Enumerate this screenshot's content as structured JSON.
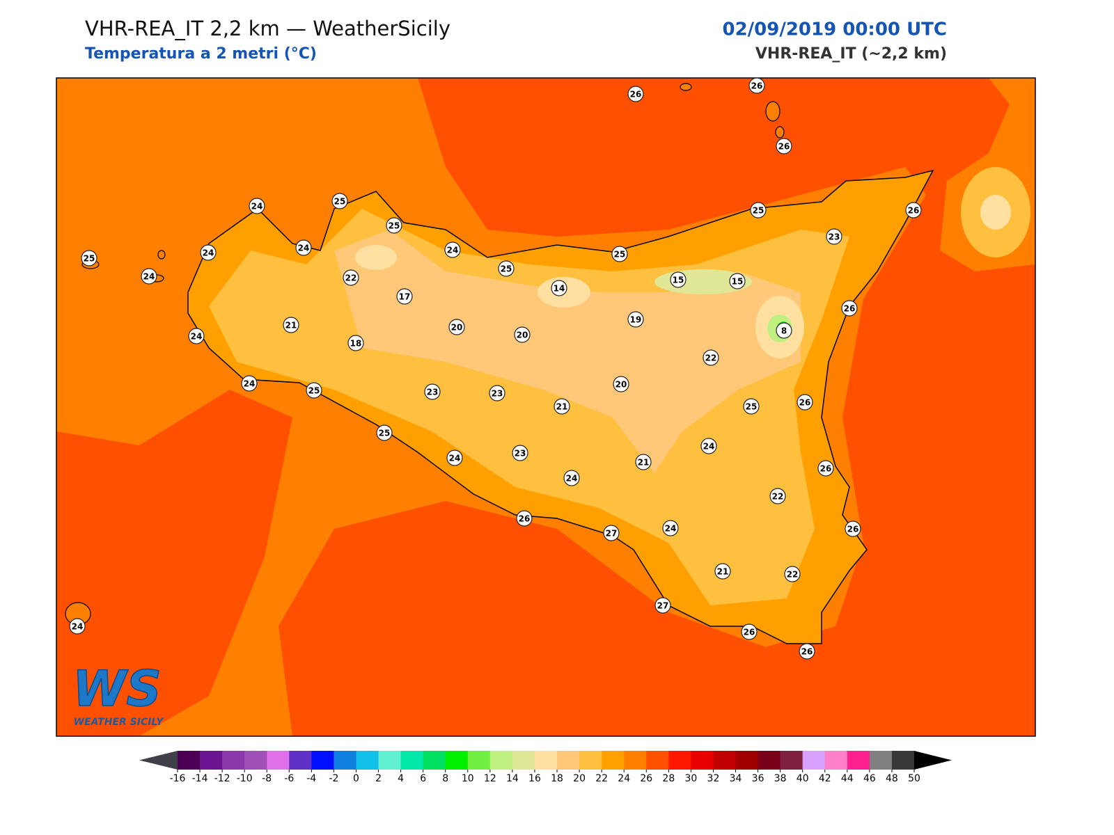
{
  "header": {
    "title": "VHR-REA_IT 2,2 km — WeatherSicily",
    "subtitle": "Temperatura a 2 metri (°C)",
    "datetime": "02/09/2019 00:00 UTC",
    "model": "VHR-REA_IT (~2,2 km)"
  },
  "map": {
    "stations": [
      26,
      26,
      26,
      24,
      25,
      25,
      25,
      24,
      24,
      24,
      24,
      25,
      25,
      25,
      26,
      23,
      22,
      17,
      14,
      15,
      15,
      19,
      8,
      26,
      21,
      24,
      20,
      20,
      18,
      22,
      24,
      25,
      23,
      23,
      21,
      20,
      25,
      26,
      25,
      24,
      23,
      24,
      21,
      24,
      26,
      22,
      26,
      27,
      24,
      26,
      21,
      22,
      27,
      26,
      26,
      24
    ]
  },
  "colorbar": {
    "ticks": [
      -16,
      -14,
      -12,
      -10,
      -8,
      -6,
      -4,
      -2,
      0,
      2,
      4,
      6,
      8,
      10,
      12,
      14,
      16,
      18,
      20,
      22,
      24,
      26,
      28,
      30,
      32,
      34,
      36,
      38,
      40,
      42,
      44,
      46,
      48,
      50
    ],
    "colors": [
      "#4b0055",
      "#6a1494",
      "#8a3aaa",
      "#a050b8",
      "#e070e8",
      "#6030c8",
      "#0010ff",
      "#1080e0",
      "#10c0e8",
      "#60f0d0",
      "#00e8a8",
      "#00e060",
      "#00f000",
      "#70f040",
      "#c0f080",
      "#e0e898",
      "#ffe0a0",
      "#ffc878",
      "#ffc040",
      "#ffa000",
      "#ff8000",
      "#ff5000",
      "#ff1800",
      "#e80000",
      "#c00000",
      "#a00000",
      "#780018",
      "#802040",
      "#d8a0ff",
      "#ff80c8",
      "#ff2090",
      "#808080",
      "#383838"
    ],
    "under_color": "#404048",
    "over_color": "#000000"
  },
  "logo": {
    "initials": "WS",
    "name": "WEATHER SICILY"
  }
}
